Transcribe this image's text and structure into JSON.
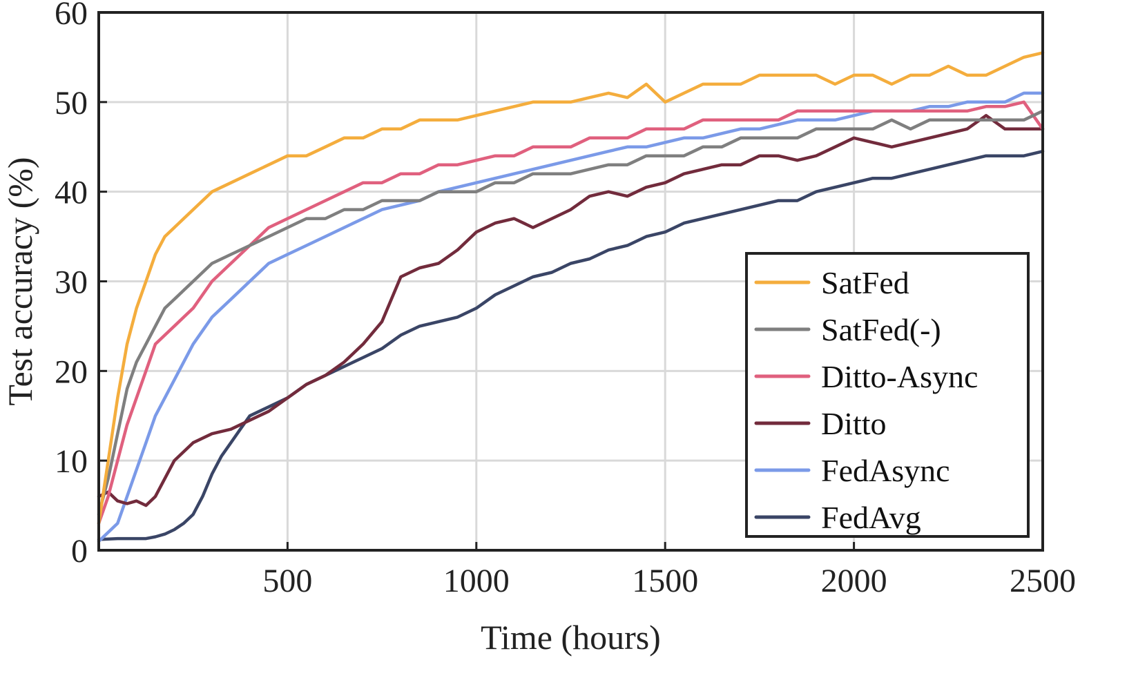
{
  "chart_data": {
    "type": "line",
    "title": "",
    "xlabel": "Time (hours)",
    "ylabel": "Test accuracy (%)",
    "xlim": [
      0,
      2500
    ],
    "ylim": [
      0,
      60
    ],
    "grid": true,
    "legend_position": "bottom-right",
    "x_ticks": [
      500,
      1000,
      1500,
      2000,
      2500
    ],
    "x_tick_labels": [
      "500",
      "1000",
      "1500",
      "2000",
      "2500"
    ],
    "y_ticks": [
      0,
      10,
      20,
      30,
      40,
      50,
      60
    ],
    "y_tick_labels": [
      "0",
      "10",
      "20",
      "30",
      "40",
      "50",
      "60"
    ],
    "series": [
      {
        "name": "SatFed",
        "color": "#f4ad3d",
        "x": [
          0,
          25,
          50,
          75,
          100,
          125,
          150,
          175,
          200,
          225,
          250,
          300,
          350,
          400,
          450,
          500,
          550,
          600,
          650,
          700,
          750,
          800,
          850,
          900,
          950,
          1000,
          1050,
          1100,
          1150,
          1200,
          1250,
          1300,
          1350,
          1400,
          1450,
          1500,
          1550,
          1600,
          1650,
          1700,
          1750,
          1800,
          1850,
          1900,
          1950,
          2000,
          2050,
          2100,
          2150,
          2200,
          2250,
          2300,
          2350,
          2400,
          2450,
          2500
        ],
        "values": [
          3,
          10,
          17,
          23,
          27,
          30,
          33,
          35,
          36,
          37,
          38,
          40,
          41,
          42,
          43,
          44,
          44,
          45,
          46,
          46,
          47,
          47,
          48,
          48,
          48,
          48.5,
          49,
          49.5,
          50,
          50,
          50,
          50.5,
          51,
          50.5,
          52,
          50,
          51,
          52,
          52,
          52,
          53,
          53,
          53,
          53,
          52,
          53,
          53,
          52,
          53,
          53,
          54,
          53,
          53,
          54,
          55,
          55.5
        ]
      },
      {
        "name": "SatFed(-)",
        "color": "#7f7f7f",
        "x": [
          0,
          25,
          50,
          75,
          100,
          125,
          150,
          175,
          200,
          225,
          250,
          300,
          350,
          400,
          450,
          500,
          550,
          600,
          650,
          700,
          750,
          800,
          850,
          900,
          950,
          1000,
          1050,
          1100,
          1150,
          1200,
          1250,
          1300,
          1350,
          1400,
          1450,
          1500,
          1550,
          1600,
          1650,
          1700,
          1750,
          1800,
          1850,
          1900,
          1950,
          2000,
          2050,
          2100,
          2150,
          2200,
          2250,
          2300,
          2350,
          2400,
          2450,
          2500
        ],
        "values": [
          4,
          8,
          13,
          18,
          21,
          23,
          25,
          27,
          28,
          29,
          30,
          32,
          33,
          34,
          35,
          36,
          37,
          37,
          38,
          38,
          39,
          39,
          39,
          40,
          40,
          40,
          41,
          41,
          42,
          42,
          42,
          42.5,
          43,
          43,
          44,
          44,
          44,
          45,
          45,
          46,
          46,
          46,
          46,
          47,
          47,
          47,
          47,
          48,
          47,
          48,
          48,
          48,
          48,
          48,
          48,
          49
        ]
      },
      {
        "name": "Ditto-Async",
        "color": "#e0607e",
        "x": [
          0,
          25,
          50,
          75,
          100,
          125,
          150,
          175,
          200,
          225,
          250,
          300,
          350,
          400,
          450,
          500,
          550,
          600,
          650,
          700,
          750,
          800,
          850,
          900,
          950,
          1000,
          1050,
          1100,
          1150,
          1200,
          1250,
          1300,
          1350,
          1400,
          1450,
          1500,
          1550,
          1600,
          1650,
          1700,
          1750,
          1800,
          1850,
          1900,
          1950,
          2000,
          2050,
          2100,
          2150,
          2200,
          2250,
          2300,
          2350,
          2400,
          2450,
          2500
        ],
        "values": [
          3,
          6,
          10,
          14,
          17,
          20,
          23,
          24,
          25,
          26,
          27,
          30,
          32,
          34,
          36,
          37,
          38,
          39,
          40,
          41,
          41,
          42,
          42,
          43,
          43,
          43.5,
          44,
          44,
          45,
          45,
          45,
          46,
          46,
          46,
          47,
          47,
          47,
          48,
          48,
          48,
          48,
          48,
          49,
          49,
          49,
          49,
          49,
          49,
          49,
          49,
          49,
          49,
          49.5,
          49.5,
          50,
          47
        ]
      },
      {
        "name": "Ditto",
        "color": "#722b3c",
        "x": [
          0,
          25,
          50,
          75,
          100,
          125,
          150,
          200,
          250,
          300,
          350,
          400,
          450,
          500,
          550,
          600,
          650,
          700,
          750,
          800,
          850,
          900,
          950,
          1000,
          1050,
          1100,
          1150,
          1200,
          1250,
          1300,
          1350,
          1400,
          1450,
          1500,
          1550,
          1600,
          1650,
          1700,
          1750,
          1800,
          1850,
          1900,
          1950,
          2000,
          2050,
          2100,
          2150,
          2200,
          2250,
          2300,
          2350,
          2400,
          2450,
          2500
        ],
        "values": [
          6,
          6.5,
          5.5,
          5.2,
          5.5,
          5,
          6,
          10,
          12,
          13,
          13.5,
          14.5,
          15.5,
          17,
          18.5,
          19.5,
          21,
          23,
          25.5,
          30.5,
          31.5,
          32,
          33.5,
          35.5,
          36.5,
          37,
          36,
          37,
          38,
          39.5,
          40,
          39.5,
          40.5,
          41,
          42,
          42.5,
          43,
          43,
          44,
          44,
          43.5,
          44,
          45,
          46,
          45.5,
          45,
          45.5,
          46,
          46.5,
          47,
          48.5,
          47,
          47,
          47
        ]
      },
      {
        "name": "FedAsync",
        "color": "#7b9ae8",
        "x": [
          0,
          25,
          50,
          75,
          100,
          125,
          150,
          175,
          200,
          225,
          250,
          300,
          350,
          400,
          450,
          500,
          550,
          600,
          650,
          700,
          750,
          800,
          850,
          900,
          950,
          1000,
          1050,
          1100,
          1150,
          1200,
          1250,
          1300,
          1350,
          1400,
          1450,
          1500,
          1550,
          1600,
          1650,
          1700,
          1750,
          1800,
          1850,
          1900,
          1950,
          2000,
          2050,
          2100,
          2150,
          2200,
          2250,
          2300,
          2350,
          2400,
          2450,
          2500
        ],
        "values": [
          1,
          2,
          3,
          6,
          9,
          12,
          15,
          17,
          19,
          21,
          23,
          26,
          28,
          30,
          32,
          33,
          34,
          35,
          36,
          37,
          38,
          38.5,
          39,
          40,
          40.5,
          41,
          41.5,
          42,
          42.5,
          43,
          43.5,
          44,
          44.5,
          45,
          45,
          45.5,
          46,
          46,
          46.5,
          47,
          47,
          47.5,
          48,
          48,
          48,
          48.5,
          49,
          49,
          49,
          49.5,
          49.5,
          50,
          50,
          50,
          51,
          51
        ]
      },
      {
        "name": "FedAvg",
        "color": "#3a4566",
        "x": [
          0,
          50,
          100,
          125,
          150,
          175,
          200,
          225,
          250,
          275,
          300,
          325,
          350,
          375,
          400,
          450,
          500,
          550,
          600,
          650,
          700,
          750,
          800,
          850,
          900,
          950,
          1000,
          1050,
          1100,
          1150,
          1200,
          1250,
          1300,
          1350,
          1400,
          1450,
          1500,
          1550,
          1600,
          1650,
          1700,
          1750,
          1800,
          1850,
          1900,
          1950,
          2000,
          2050,
          2100,
          2150,
          2200,
          2250,
          2300,
          2350,
          2400,
          2450,
          2500
        ],
        "values": [
          1.2,
          1.3,
          1.3,
          1.3,
          1.5,
          1.8,
          2.3,
          3,
          4,
          6,
          8.5,
          10.5,
          12,
          13.5,
          15,
          16,
          17,
          18.5,
          19.5,
          20.5,
          21.5,
          22.5,
          24,
          25,
          25.5,
          26,
          27,
          28.5,
          29.5,
          30.5,
          31,
          32,
          32.5,
          33.5,
          34,
          35,
          35.5,
          36.5,
          37,
          37.5,
          38,
          38.5,
          39,
          39,
          40,
          40.5,
          41,
          41.5,
          41.5,
          42,
          42.5,
          43,
          43.5,
          44,
          44,
          44,
          44.5
        ]
      }
    ]
  }
}
